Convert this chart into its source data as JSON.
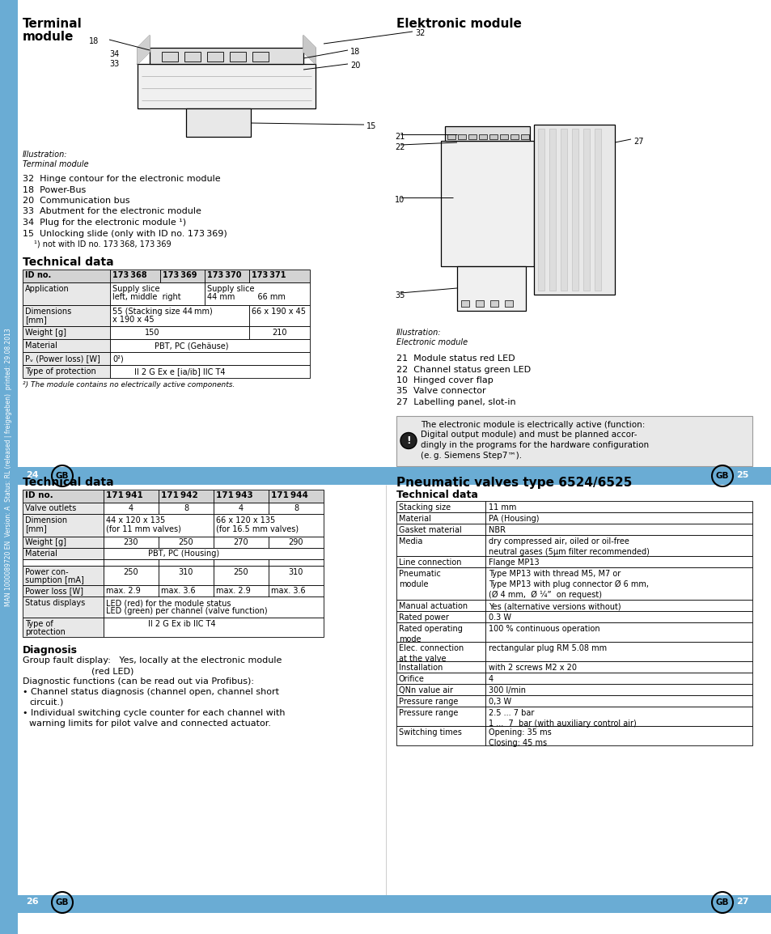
{
  "page_bg": "#ffffff",
  "sidebar_color": "#6aacd4",
  "bar_color": "#6aacd4",
  "sidebar_text": "MAN 1000089720 EN  Version: A  Status: RL (released | freigegeben)  printed: 29.08.2013",
  "page_num_left_top": "24",
  "page_num_right_top": "25",
  "page_num_bottom_left": "26",
  "page_num_bottom_right": "27"
}
